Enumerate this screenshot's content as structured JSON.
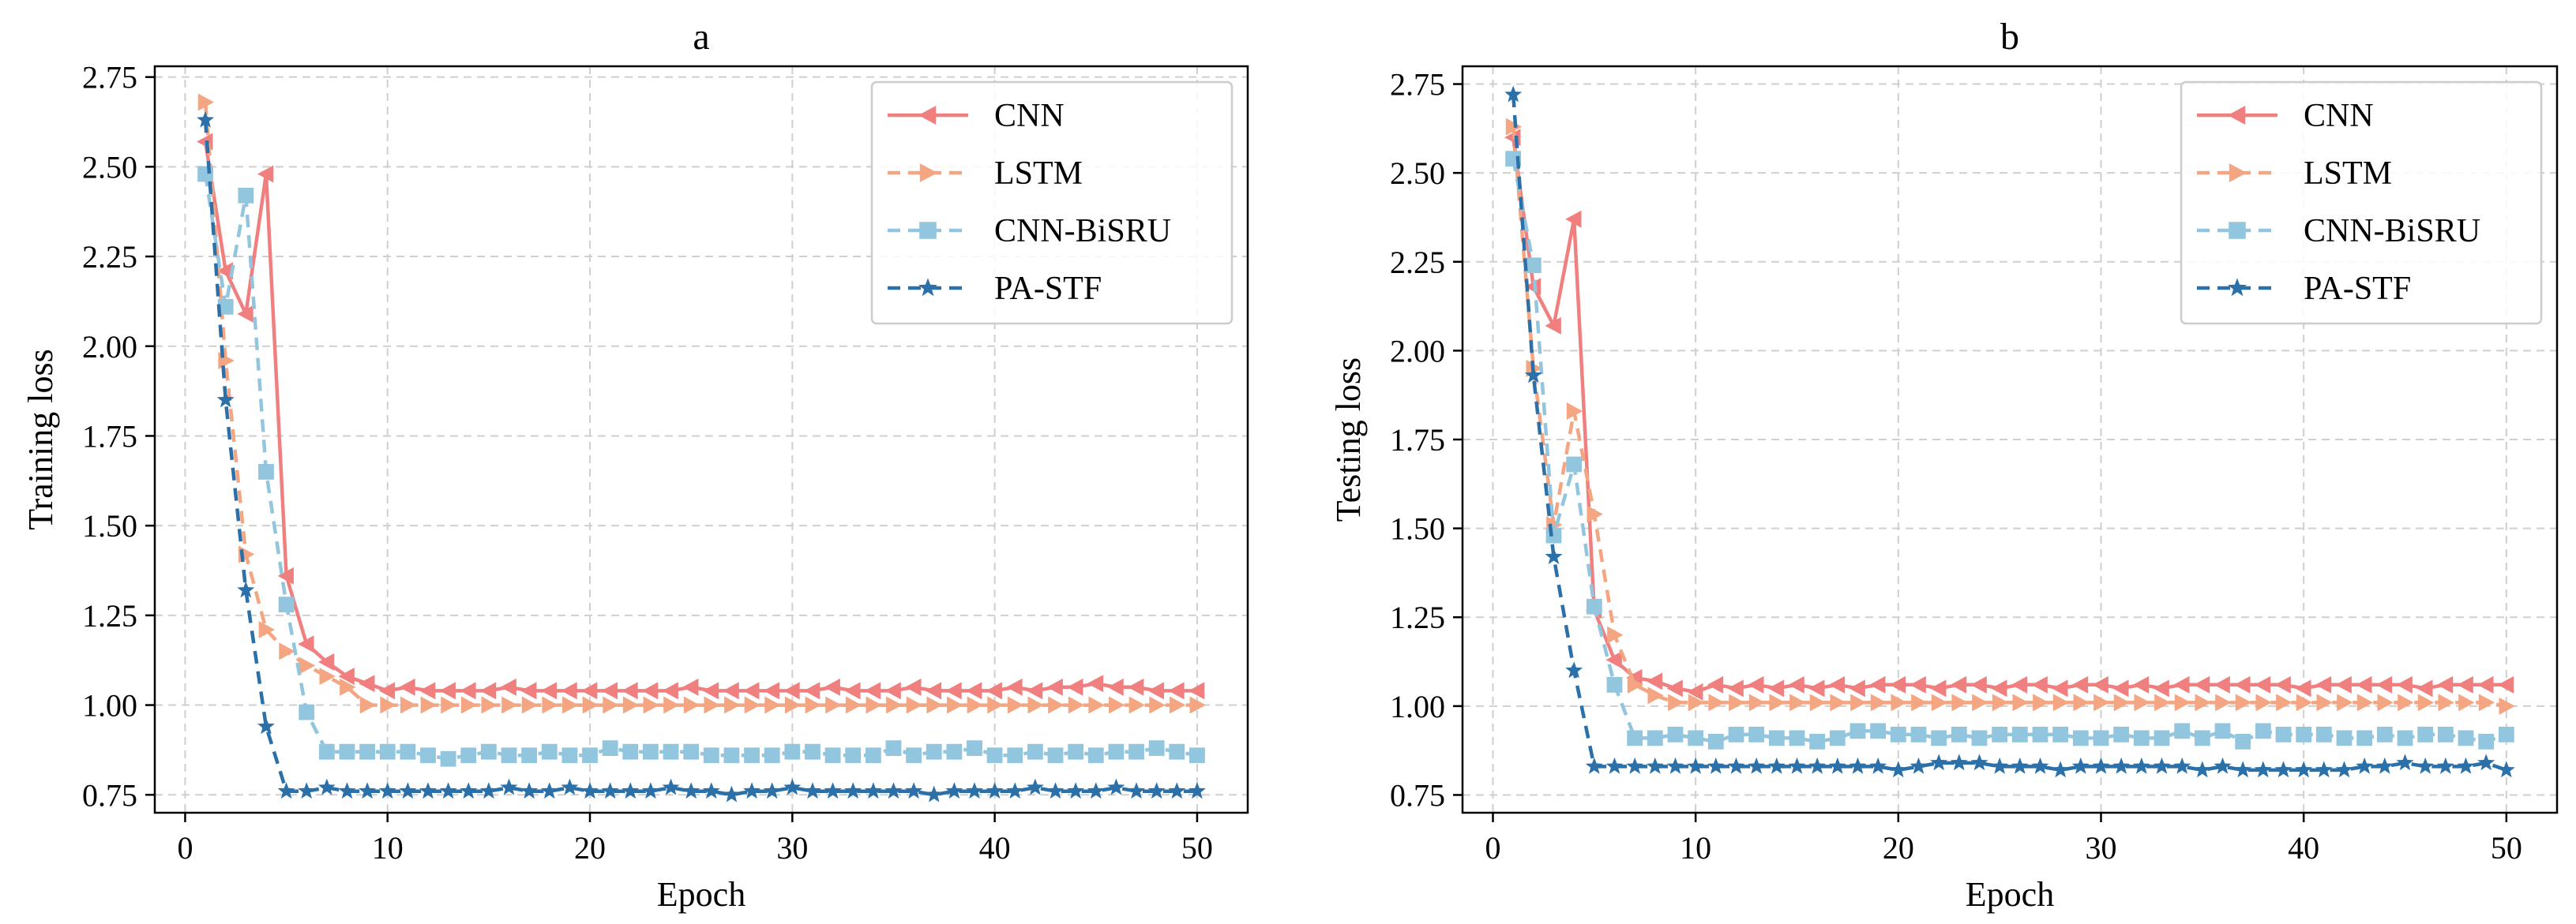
{
  "chart_data": [
    {
      "type": "line",
      "title": "a",
      "xlabel": "Epoch",
      "ylabel": "Training loss",
      "xlim": [
        -1.5,
        52.5
      ],
      "ylim": [
        0.7,
        2.78
      ],
      "xticks": [
        0,
        10,
        20,
        30,
        40,
        50
      ],
      "xtick_labels": [
        "0",
        "10",
        "20",
        "30",
        "40",
        "50"
      ],
      "yticks": [
        0.75,
        1.0,
        1.25,
        1.5,
        1.75,
        2.0,
        2.25,
        2.5,
        2.75
      ],
      "ytick_labels": [
        "0.75",
        "1.00",
        "1.25",
        "1.50",
        "1.75",
        "2.00",
        "2.25",
        "2.50",
        "2.75"
      ],
      "grid": true,
      "legend_position": "top-right",
      "x": [
        1,
        2,
        3,
        4,
        5,
        6,
        7,
        8,
        9,
        10,
        11,
        12,
        13,
        14,
        15,
        16,
        17,
        18,
        19,
        20,
        21,
        22,
        23,
        24,
        25,
        26,
        27,
        28,
        29,
        30,
        31,
        32,
        33,
        34,
        35,
        36,
        37,
        38,
        39,
        40,
        41,
        42,
        43,
        44,
        45,
        46,
        47,
        48,
        49,
        50
      ],
      "series": [
        {
          "name": "CNN",
          "color": "#f08080",
          "dash": "solid",
          "marker": "triangle-left",
          "values": [
            2.57,
            2.21,
            2.09,
            2.48,
            1.36,
            1.17,
            1.12,
            1.08,
            1.06,
            1.04,
            1.05,
            1.04,
            1.04,
            1.04,
            1.04,
            1.05,
            1.04,
            1.04,
            1.04,
            1.04,
            1.04,
            1.04,
            1.04,
            1.04,
            1.05,
            1.04,
            1.04,
            1.04,
            1.04,
            1.04,
            1.04,
            1.05,
            1.04,
            1.04,
            1.04,
            1.05,
            1.04,
            1.04,
            1.04,
            1.04,
            1.05,
            1.04,
            1.05,
            1.05,
            1.06,
            1.05,
            1.05,
            1.04,
            1.04,
            1.04
          ]
        },
        {
          "name": "LSTM",
          "color": "#f4a582",
          "dash": "dashed",
          "marker": "triangle-right",
          "values": [
            2.68,
            1.96,
            1.42,
            1.21,
            1.15,
            1.11,
            1.08,
            1.05,
            1.0,
            1.0,
            1.0,
            1.0,
            1.0,
            1.0,
            1.0,
            1.0,
            1.0,
            1.0,
            1.0,
            1.0,
            1.0,
            1.0,
            1.0,
            1.0,
            1.0,
            1.0,
            1.0,
            1.0,
            1.0,
            1.0,
            1.0,
            1.0,
            1.0,
            1.0,
            1.0,
            1.0,
            1.0,
            1.0,
            1.0,
            1.0,
            1.0,
            1.0,
            1.0,
            1.0,
            1.0,
            1.0,
            1.0,
            1.0,
            1.0,
            1.0
          ]
        },
        {
          "name": "CNN-BiSRU",
          "color": "#92c5de",
          "dash": "dashed",
          "marker": "square",
          "values": [
            2.48,
            2.11,
            2.42,
            1.65,
            1.28,
            0.98,
            0.87,
            0.87,
            0.87,
            0.87,
            0.87,
            0.86,
            0.85,
            0.86,
            0.87,
            0.86,
            0.86,
            0.87,
            0.86,
            0.86,
            0.88,
            0.87,
            0.87,
            0.87,
            0.87,
            0.86,
            0.86,
            0.86,
            0.86,
            0.87,
            0.87,
            0.86,
            0.86,
            0.86,
            0.88,
            0.86,
            0.87,
            0.87,
            0.88,
            0.86,
            0.86,
            0.87,
            0.86,
            0.87,
            0.86,
            0.87,
            0.87,
            0.88,
            0.87,
            0.86
          ]
        },
        {
          "name": "PA-STF",
          "color": "#2b70a8",
          "dash": "dashed",
          "marker": "star",
          "values": [
            2.63,
            1.85,
            1.32,
            0.94,
            0.76,
            0.76,
            0.77,
            0.76,
            0.76,
            0.76,
            0.76,
            0.76,
            0.76,
            0.76,
            0.76,
            0.77,
            0.76,
            0.76,
            0.77,
            0.76,
            0.76,
            0.76,
            0.76,
            0.77,
            0.76,
            0.76,
            0.75,
            0.76,
            0.76,
            0.77,
            0.76,
            0.76,
            0.76,
            0.76,
            0.76,
            0.76,
            0.75,
            0.76,
            0.76,
            0.76,
            0.76,
            0.77,
            0.76,
            0.76,
            0.76,
            0.77,
            0.76,
            0.76,
            0.76,
            0.76
          ]
        }
      ]
    },
    {
      "type": "line",
      "title": "b",
      "xlabel": "Epoch",
      "ylabel": "Testing loss",
      "xlim": [
        -1.5,
        52.5
      ],
      "ylim": [
        0.7,
        2.8
      ],
      "xticks": [
        0,
        10,
        20,
        30,
        40,
        50
      ],
      "xtick_labels": [
        "0",
        "10",
        "20",
        "30",
        "40",
        "50"
      ],
      "yticks": [
        0.75,
        1.0,
        1.25,
        1.5,
        1.75,
        2.0,
        2.25,
        2.5,
        2.75
      ],
      "ytick_labels": [
        "0.75",
        "1.00",
        "1.25",
        "1.50",
        "1.75",
        "2.00",
        "2.25",
        "2.50",
        "2.75"
      ],
      "grid": true,
      "legend_position": "top-right",
      "x": [
        1,
        2,
        3,
        4,
        5,
        6,
        7,
        8,
        9,
        10,
        11,
        12,
        13,
        14,
        15,
        16,
        17,
        18,
        19,
        20,
        21,
        22,
        23,
        24,
        25,
        26,
        27,
        28,
        29,
        30,
        31,
        32,
        33,
        34,
        35,
        36,
        37,
        38,
        39,
        40,
        41,
        42,
        43,
        44,
        45,
        46,
        47,
        48,
        49,
        50
      ],
      "series": [
        {
          "name": "CNN",
          "color": "#f08080",
          "dash": "solid",
          "marker": "triangle-left",
          "values": [
            2.6,
            2.18,
            2.07,
            2.37,
            1.27,
            1.13,
            1.08,
            1.07,
            1.05,
            1.04,
            1.06,
            1.05,
            1.06,
            1.05,
            1.06,
            1.05,
            1.06,
            1.05,
            1.06,
            1.06,
            1.06,
            1.05,
            1.06,
            1.06,
            1.05,
            1.06,
            1.06,
            1.05,
            1.06,
            1.06,
            1.05,
            1.06,
            1.05,
            1.06,
            1.06,
            1.06,
            1.06,
            1.06,
            1.06,
            1.05,
            1.06,
            1.06,
            1.06,
            1.06,
            1.06,
            1.05,
            1.06,
            1.06,
            1.06,
            1.06
          ]
        },
        {
          "name": "LSTM",
          "color": "#f4a582",
          "dash": "dashed",
          "marker": "triangle-right",
          "values": [
            2.63,
            1.95,
            1.51,
            1.83,
            1.54,
            1.2,
            1.06,
            1.03,
            1.01,
            1.01,
            1.01,
            1.01,
            1.01,
            1.01,
            1.01,
            1.01,
            1.01,
            1.01,
            1.01,
            1.01,
            1.01,
            1.01,
            1.01,
            1.01,
            1.01,
            1.01,
            1.01,
            1.01,
            1.01,
            1.01,
            1.01,
            1.01,
            1.01,
            1.01,
            1.01,
            1.01,
            1.01,
            1.01,
            1.01,
            1.01,
            1.01,
            1.01,
            1.01,
            1.01,
            1.01,
            1.01,
            1.01,
            1.01,
            1.01,
            1.0
          ]
        },
        {
          "name": "CNN-BiSRU",
          "color": "#92c5de",
          "dash": "dashed",
          "marker": "square",
          "values": [
            2.54,
            2.24,
            1.48,
            1.68,
            1.28,
            1.06,
            0.91,
            0.91,
            0.92,
            0.91,
            0.9,
            0.92,
            0.92,
            0.91,
            0.91,
            0.9,
            0.91,
            0.93,
            0.93,
            0.92,
            0.92,
            0.91,
            0.92,
            0.91,
            0.92,
            0.92,
            0.92,
            0.92,
            0.91,
            0.91,
            0.92,
            0.91,
            0.91,
            0.93,
            0.91,
            0.93,
            0.9,
            0.93,
            0.92,
            0.92,
            0.92,
            0.91,
            0.91,
            0.92,
            0.91,
            0.92,
            0.92,
            0.91,
            0.9,
            0.92
          ]
        },
        {
          "name": "PA-STF",
          "color": "#2b70a8",
          "dash": "dashed",
          "marker": "star",
          "values": [
            2.72,
            1.93,
            1.42,
            1.1,
            0.83,
            0.83,
            0.83,
            0.83,
            0.83,
            0.83,
            0.83,
            0.83,
            0.83,
            0.83,
            0.83,
            0.83,
            0.83,
            0.83,
            0.83,
            0.82,
            0.83,
            0.84,
            0.84,
            0.84,
            0.83,
            0.83,
            0.83,
            0.82,
            0.83,
            0.83,
            0.83,
            0.83,
            0.83,
            0.83,
            0.82,
            0.83,
            0.82,
            0.82,
            0.82,
            0.82,
            0.82,
            0.82,
            0.83,
            0.83,
            0.84,
            0.83,
            0.83,
            0.83,
            0.84,
            0.82
          ]
        }
      ]
    }
  ]
}
